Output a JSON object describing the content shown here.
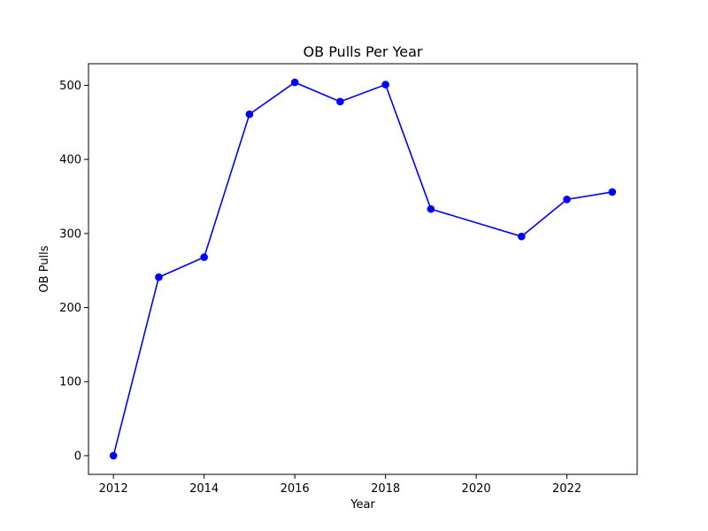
{
  "chart_data": {
    "type": "line",
    "title": "OB Pulls Per Year",
    "xlabel": "Year",
    "ylabel": "OB Pulls",
    "xlim": [
      2011.45,
      2023.55
    ],
    "ylim": [
      -25.2,
      529.2
    ],
    "x_ticks": [
      2012,
      2014,
      2016,
      2018,
      2020,
      2022
    ],
    "y_ticks": [
      0,
      100,
      200,
      300,
      400,
      500
    ],
    "grid": false,
    "legend": "none",
    "series": [
      {
        "color": "#0000ff",
        "marker": "circle",
        "x": [
          2012,
          2013,
          2014,
          2015,
          2016,
          2017,
          2018,
          2019,
          2021,
          2022,
          2023
        ],
        "y": [
          0,
          241,
          268,
          461,
          504,
          478,
          501,
          333,
          296,
          346,
          356
        ]
      }
    ]
  }
}
